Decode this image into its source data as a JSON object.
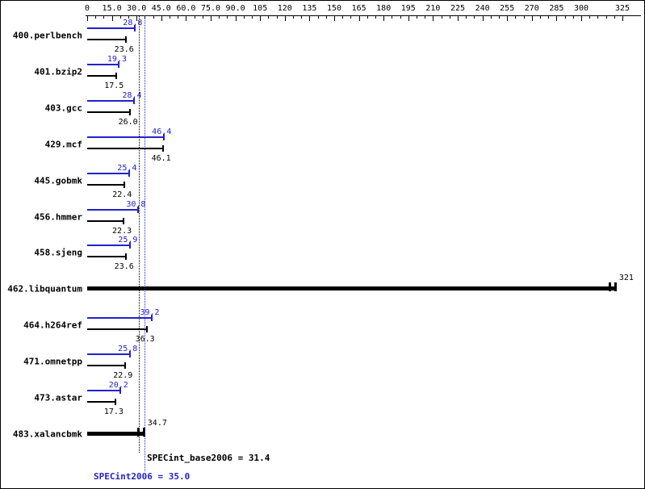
{
  "colors": {
    "base": "#000000",
    "peak": "#2222cc",
    "background": "#ffffff"
  },
  "chart_data": {
    "type": "bar",
    "orientation": "horizontal",
    "title": "",
    "grid": false,
    "axis": {
      "min": 0,
      "max": 325,
      "minor_step": 5,
      "major_step": 15,
      "ticks": [
        {
          "value": 0,
          "label": "0"
        },
        {
          "value": 15,
          "label": "15.0"
        },
        {
          "value": 30,
          "label": "30.0"
        },
        {
          "value": 45,
          "label": "45.0"
        },
        {
          "value": 60,
          "label": "60.0"
        },
        {
          "value": 75,
          "label": "75.0"
        },
        {
          "value": 90,
          "label": "90.0"
        },
        {
          "value": 105,
          "label": "105"
        },
        {
          "value": 120,
          "label": "120"
        },
        {
          "value": 135,
          "label": "135"
        },
        {
          "value": 150,
          "label": "150"
        },
        {
          "value": 165,
          "label": "165"
        },
        {
          "value": 180,
          "label": "180"
        },
        {
          "value": 195,
          "label": "195"
        },
        {
          "value": 210,
          "label": "210"
        },
        {
          "value": 225,
          "label": "225"
        },
        {
          "value": 240,
          "label": "240"
        },
        {
          "value": 255,
          "label": "255"
        },
        {
          "value": 270,
          "label": "270"
        },
        {
          "value": 285,
          "label": "285"
        },
        {
          "value": 300,
          "label": "300"
        },
        {
          "value": 325,
          "label": "325"
        }
      ]
    },
    "benchmarks": [
      {
        "name": "400.perlbench",
        "peak": 28.8,
        "peak_label": "28.8",
        "base": 23.6,
        "base_label": "23.6"
      },
      {
        "name": "401.bzip2",
        "peak": 19.3,
        "peak_label": "19.3",
        "base": 17.5,
        "base_label": "17.5"
      },
      {
        "name": "403.gcc",
        "peak": 28.4,
        "peak_label": "28.4",
        "base": 26.0,
        "base_label": "26.0"
      },
      {
        "name": "429.mcf",
        "peak": 46.4,
        "peak_label": "46.4",
        "base": 46.1,
        "base_label": "46.1"
      },
      {
        "name": "445.gobmk",
        "peak": 25.4,
        "peak_label": "25.4",
        "base": 22.4,
        "base_label": "22.4"
      },
      {
        "name": "456.hmmer",
        "peak": 30.8,
        "peak_label": "30.8",
        "base": 22.3,
        "base_label": "22.3"
      },
      {
        "name": "458.sjeng",
        "peak": 25.9,
        "peak_label": "25.9",
        "base": 23.6,
        "base_label": "23.6"
      },
      {
        "name": "462.libquantum",
        "single": 321,
        "single_label": "321"
      },
      {
        "name": "464.h264ref",
        "peak": 39.2,
        "peak_label": "39.2",
        "base": 36.3,
        "base_label": "36.3"
      },
      {
        "name": "471.omnetpp",
        "peak": 25.8,
        "peak_label": "25.8",
        "base": 22.9,
        "base_label": "22.9"
      },
      {
        "name": "473.astar",
        "peak": 20.2,
        "peak_label": "20.2",
        "base": 17.3,
        "base_label": "17.3"
      },
      {
        "name": "483.xalancbmk",
        "single": 34.7,
        "single_label": "34.7"
      }
    ],
    "means": {
      "base": {
        "value": 31.4,
        "label": "SPECint_base2006 = 31.4"
      },
      "peak": {
        "value": 35.0,
        "label": "SPECint2006 = 35.0"
      }
    }
  }
}
